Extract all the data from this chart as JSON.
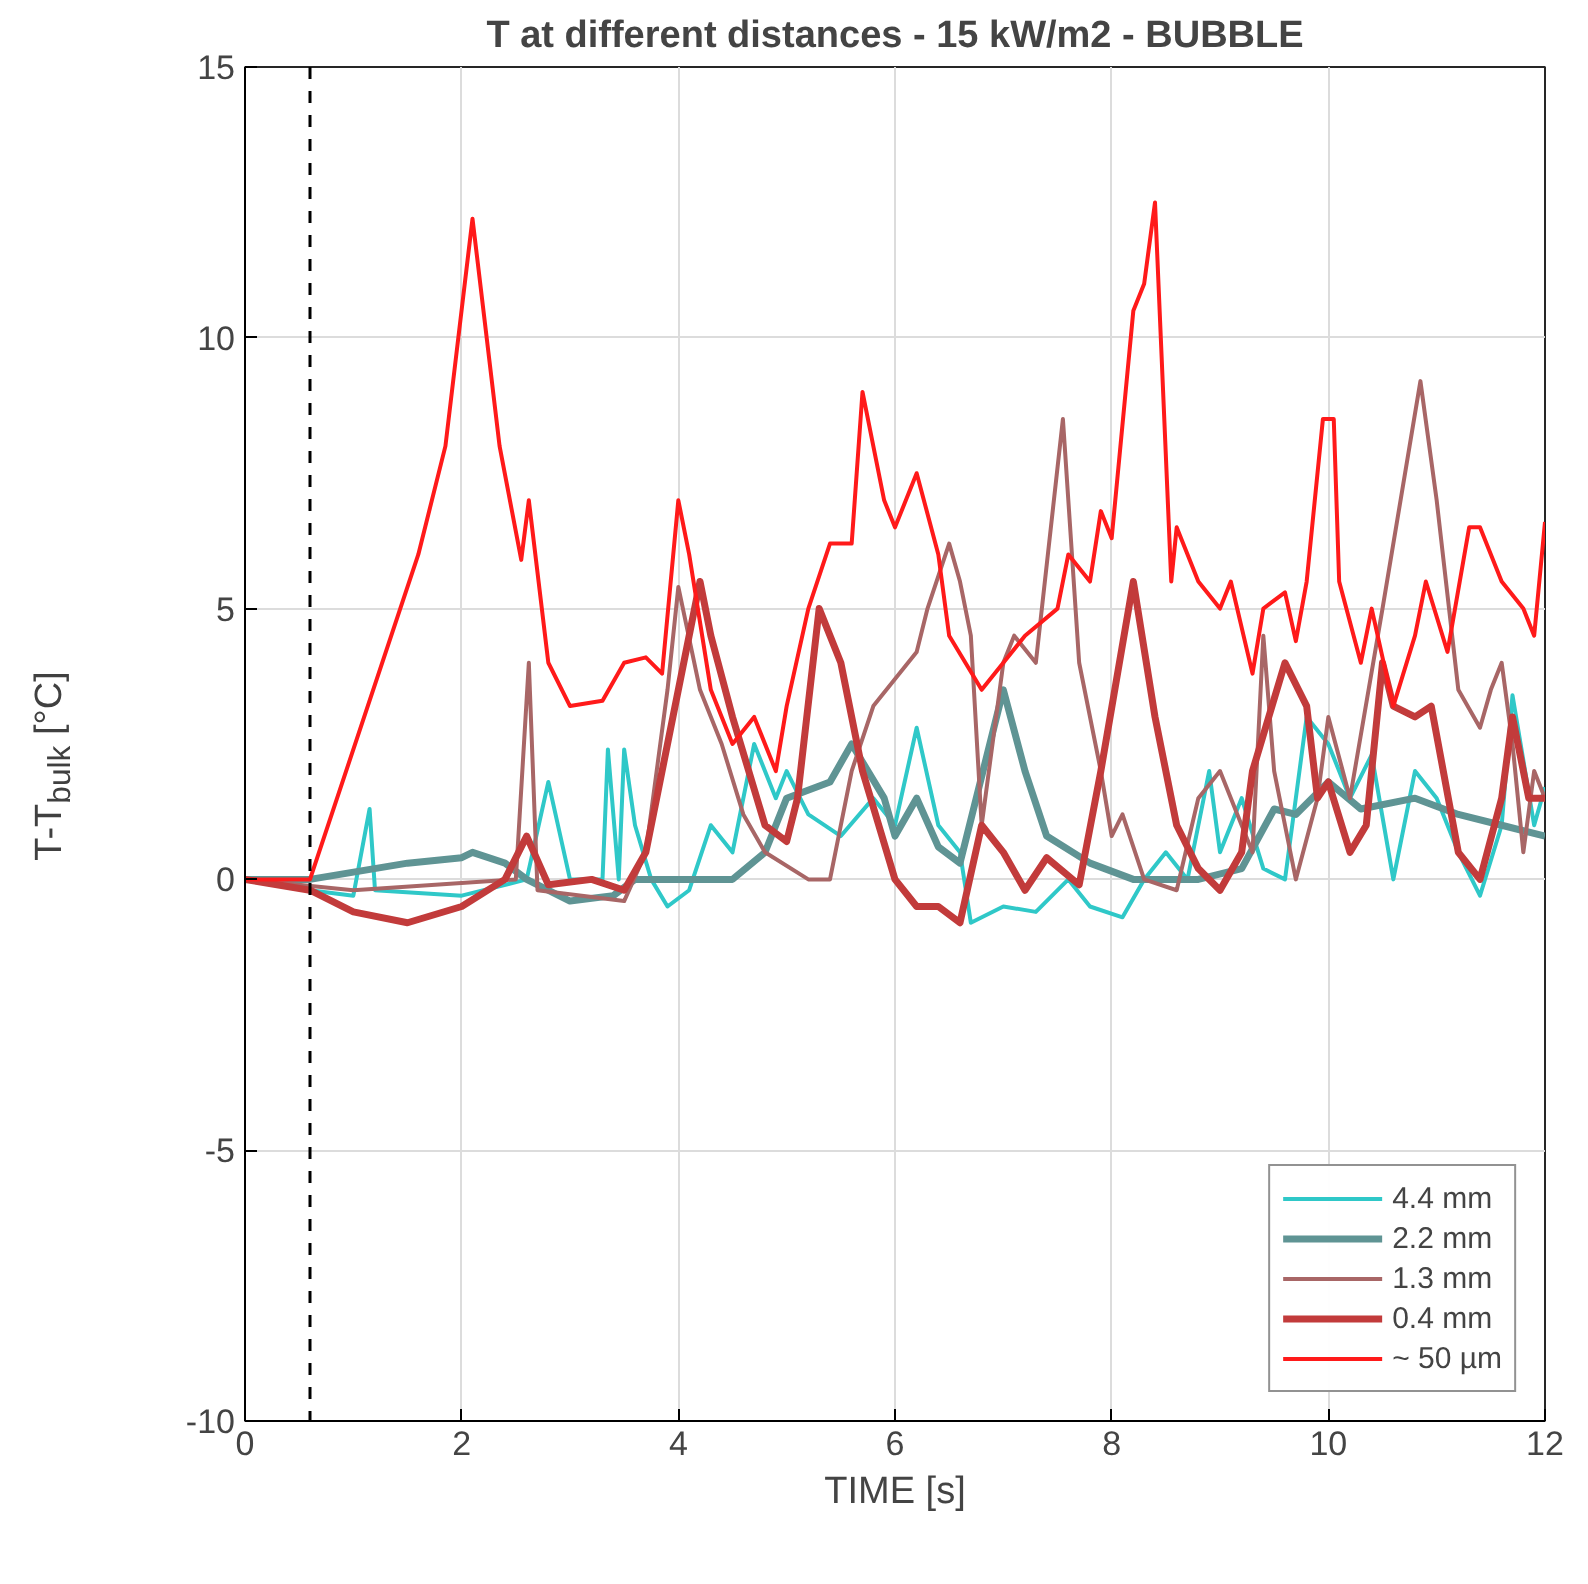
{
  "chart_data": {
    "type": "line",
    "title": "T at different distances - 15 kW/m2 - BUBBLE",
    "xlabel": "TIME [s]",
    "ylabel": "T-T$_{bulk}$ [°C]",
    "xlim": [
      0,
      12
    ],
    "ylim": [
      -10,
      15
    ],
    "xticks": [
      0,
      2,
      4,
      6,
      8,
      10,
      12
    ],
    "yticks": [
      -10,
      -5,
      0,
      5,
      10,
      15
    ],
    "grid": true,
    "legend": "bottom right",
    "marker": "none",
    "line_style": "solid",
    "ref_lines": [
      {
        "axis": "x",
        "value": 0.6,
        "label": null,
        "color": "#000000",
        "line_style": "dashed"
      }
    ],
    "series": [
      {
        "name": "4.4 mm",
        "color": "#2fc8c8",
        "x": [
          0,
          0.6,
          1.0,
          1.15,
          1.2,
          2.0,
          2.6,
          2.8,
          3.0,
          3.3,
          3.35,
          3.45,
          3.5,
          3.6,
          3.75,
          3.9,
          4.1,
          4.3,
          4.5,
          4.7,
          4.9,
          5.0,
          5.2,
          5.5,
          5.8,
          6.0,
          6.2,
          6.4,
          6.6,
          6.7,
          7.0,
          7.3,
          7.6,
          7.8,
          8.1,
          8.3,
          8.5,
          8.7,
          8.9,
          9.0,
          9.2,
          9.4,
          9.6,
          9.8,
          10.0,
          10.2,
          10.4,
          10.6,
          10.8,
          11.0,
          11.2,
          11.4,
          11.6,
          11.7,
          11.9,
          12
        ],
        "values": [
          0,
          -0.2,
          -0.3,
          1.3,
          -0.2,
          -0.3,
          0,
          1.8,
          0,
          0,
          2.4,
          0,
          2.4,
          1,
          0,
          -0.5,
          -0.2,
          1,
          0.5,
          2.5,
          1.5,
          2,
          1.2,
          0.8,
          1.5,
          1,
          2.8,
          1,
          0.5,
          -0.8,
          -0.5,
          -0.6,
          0,
          -0.5,
          -0.7,
          0,
          0.5,
          0,
          2,
          0.5,
          1.5,
          0.2,
          0,
          3,
          2.5,
          1.5,
          2.3,
          0,
          2,
          1.5,
          0.5,
          -0.3,
          1,
          3.4,
          1,
          1.7
        ]
      },
      {
        "name": "2.2 mm",
        "color": "#5f9494",
        "x": [
          0,
          0.6,
          1.5,
          2.0,
          2.1,
          2.4,
          2.6,
          3.0,
          3.4,
          3.6,
          3.9,
          4.5,
          4.8,
          5.0,
          5.4,
          5.6,
          5.9,
          6.0,
          6.2,
          6.4,
          6.6,
          7.0,
          7.2,
          7.4,
          7.8,
          8.2,
          8.8,
          9.2,
          9.5,
          9.7,
          10.0,
          10.3,
          10.8,
          11.2,
          11.6,
          12
        ],
        "values": [
          0,
          0,
          0.3,
          0.4,
          0.5,
          0.3,
          0,
          -0.4,
          -0.3,
          0,
          0,
          0,
          0.5,
          1.5,
          1.8,
          2.5,
          1.5,
          0.8,
          1.5,
          0.6,
          0.3,
          3.5,
          2,
          0.8,
          0.3,
          0,
          0,
          0.2,
          1.3,
          1.2,
          1.8,
          1.3,
          1.5,
          1.2,
          1,
          0.8
        ]
      },
      {
        "name": "1.3 mm",
        "color": "#a86666",
        "x": [
          0,
          1.0,
          2.5,
          2.62,
          2.7,
          3.5,
          3.7,
          3.9,
          4.0,
          4.2,
          4.4,
          4.6,
          4.8,
          5.2,
          5.4,
          5.6,
          5.8,
          6.0,
          6.2,
          6.3,
          6.5,
          6.6,
          6.7,
          6.8,
          7.0,
          7.1,
          7.3,
          7.55,
          7.7,
          7.9,
          8.0,
          8.1,
          8.3,
          8.6,
          8.8,
          9.0,
          9.2,
          9.3,
          9.4,
          9.5,
          9.7,
          9.9,
          10.0,
          10.2,
          10.5,
          10.75,
          10.85,
          11.0,
          11.2,
          11.4,
          11.5,
          11.6,
          11.7,
          11.8,
          11.9,
          12
        ],
        "values": [
          0,
          -0.2,
          0,
          4,
          -0.2,
          -0.4,
          0.5,
          3.5,
          5.4,
          3.5,
          2.5,
          1.2,
          0.5,
          0,
          0,
          2,
          3.2,
          3.7,
          4.2,
          5,
          6.2,
          5.5,
          4.5,
          1,
          4,
          4.5,
          4,
          8.5,
          4,
          2,
          0.8,
          1.2,
          0,
          -0.2,
          1.5,
          2,
          1,
          0.5,
          4.5,
          2,
          0,
          1.5,
          3,
          1.5,
          5,
          8,
          9.2,
          7,
          3.5,
          2.8,
          3.5,
          4,
          2.5,
          0.5,
          2,
          1.5
        ]
      },
      {
        "name": "0.4 mm",
        "color": "#c23b3b",
        "x": [
          0,
          0.6,
          1.0,
          1.5,
          2.0,
          2.4,
          2.6,
          2.8,
          3.2,
          3.5,
          3.7,
          3.9,
          4.2,
          4.3,
          4.5,
          4.8,
          5.0,
          5.1,
          5.3,
          5.5,
          5.7,
          6.0,
          6.2,
          6.4,
          6.6,
          6.8,
          7.0,
          7.2,
          7.4,
          7.7,
          7.9,
          8.2,
          8.4,
          8.6,
          8.8,
          9.0,
          9.2,
          9.3,
          9.6,
          9.8,
          9.9,
          10.0,
          10.2,
          10.35,
          10.5,
          10.6,
          10.8,
          10.95,
          11.2,
          11.4,
          11.6,
          11.7,
          11.85,
          12
        ],
        "values": [
          0,
          -0.2,
          -0.6,
          -0.8,
          -0.5,
          0,
          0.8,
          -0.1,
          0,
          -0.2,
          0.5,
          2.5,
          5.5,
          4.5,
          3,
          1,
          0.7,
          1.5,
          5,
          4,
          2,
          0,
          -0.5,
          -0.5,
          -0.8,
          1,
          0.5,
          -0.2,
          0.4,
          -0.1,
          2,
          5.5,
          3,
          1,
          0.2,
          -0.2,
          0.5,
          2,
          4,
          3.2,
          1.5,
          1.8,
          0.5,
          1,
          4,
          3.2,
          3,
          3.2,
          0.5,
          0,
          1.5,
          3,
          1.5,
          1.5
        ]
      },
      {
        "name": "~ 50 µm",
        "color": "#ff1a1a",
        "x": [
          0,
          0.6,
          1.6,
          1.85,
          2.1,
          2.35,
          2.55,
          2.62,
          2.8,
          3.0,
          3.3,
          3.5,
          3.7,
          3.85,
          4.0,
          4.1,
          4.3,
          4.5,
          4.7,
          4.9,
          5.0,
          5.2,
          5.4,
          5.6,
          5.7,
          5.9,
          6.0,
          6.2,
          6.4,
          6.5,
          6.8,
          7.0,
          7.2,
          7.5,
          7.6,
          7.8,
          7.9,
          8.0,
          8.2,
          8.3,
          8.4,
          8.55,
          8.6,
          8.8,
          9.0,
          9.1,
          9.3,
          9.4,
          9.6,
          9.7,
          9.8,
          9.95,
          10.05,
          10.1,
          10.3,
          10.4,
          10.6,
          10.8,
          10.9,
          11.1,
          11.3,
          11.4,
          11.6,
          11.8,
          11.9,
          12
        ],
        "values": [
          0,
          0,
          6,
          8,
          12.2,
          8,
          5.9,
          7,
          4,
          3.2,
          3.3,
          4,
          4.1,
          3.8,
          7,
          6,
          3.5,
          2.5,
          3,
          2,
          3.2,
          5,
          6.2,
          6.2,
          9,
          7,
          6.5,
          7.5,
          6,
          4.5,
          3.5,
          4,
          4.5,
          5,
          6,
          5.5,
          6.8,
          6.3,
          10.5,
          11,
          12.5,
          5.5,
          6.5,
          5.5,
          5,
          5.5,
          3.8,
          5,
          5.3,
          4.4,
          5.5,
          8.5,
          8.5,
          5.5,
          4,
          5,
          3.2,
          4.5,
          5.5,
          4.2,
          6.5,
          6.5,
          5.5,
          5,
          4.5,
          6.6
        ]
      }
    ]
  }
}
